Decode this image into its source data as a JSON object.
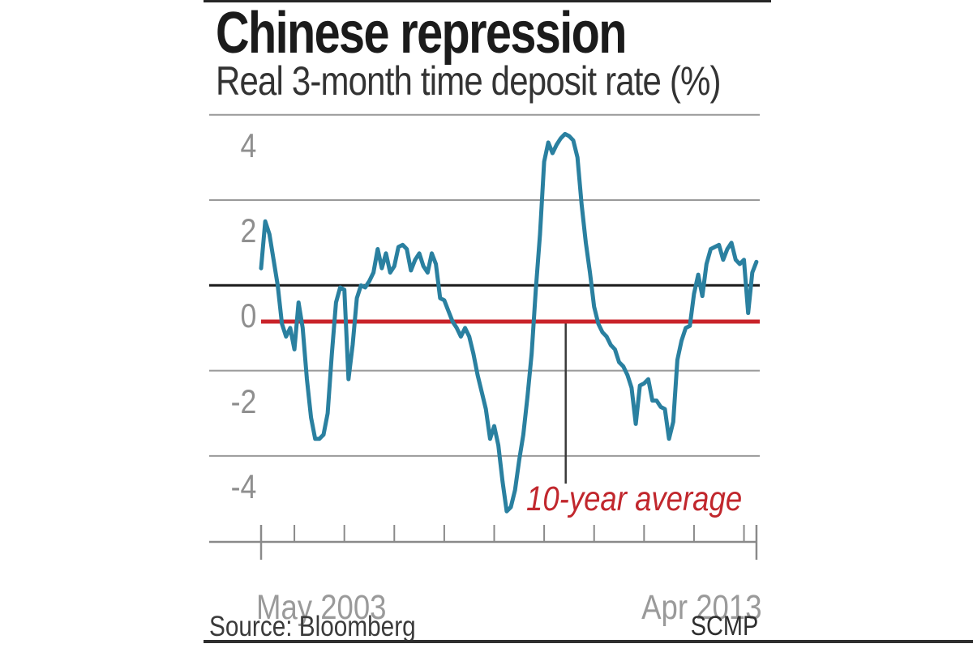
{
  "header": {
    "title": "Chinese repression",
    "subtitle": "Real 3-month time deposit rate (%)"
  },
  "footer": {
    "source": "Source: Bloomberg",
    "credit": "SCMP"
  },
  "annotation": {
    "label": "10-year average"
  },
  "y_axis": {
    "labels": [
      "4",
      "2",
      "0",
      "-2",
      "-4"
    ]
  },
  "x_axis": {
    "start_label": "May 2003",
    "end_label": "Apr 2013"
  },
  "colors": {
    "line": "#2a80a0",
    "average_line": "#c9232a",
    "annotation_text": "#c1272d",
    "zero_line": "#1a1a1a",
    "gridline": "#999999",
    "axis": "#8a8a8a",
    "connector": "#3a3a3a"
  },
  "chart_data": {
    "type": "line",
    "title": "Chinese repression",
    "subtitle": "Real 3-month time deposit rate (%)",
    "unit": "%",
    "x_start": "2003-05",
    "x_end": "2013-04",
    "frequency": "monthly",
    "yticks": [
      4,
      2,
      0,
      -2,
      -4
    ],
    "ylim": [
      -6,
      4
    ],
    "grid": true,
    "legend": false,
    "zero_line_emphasized": true,
    "ten_year_average": -0.85,
    "year_tick_months": [
      8,
      20,
      32,
      44,
      56,
      68,
      80,
      92,
      104,
      116
    ],
    "values_monthly": [
      0.4,
      1.5,
      1.2,
      0.6,
      0.0,
      -0.9,
      -1.2,
      -1.0,
      -1.5,
      -0.4,
      -1.0,
      -2.2,
      -3.1,
      -3.6,
      -3.6,
      -3.5,
      -3.0,
      -1.6,
      -0.4,
      -0.05,
      -0.1,
      -2.2,
      -1.4,
      -0.3,
      0.0,
      -0.05,
      0.1,
      0.3,
      0.85,
      0.4,
      0.75,
      0.3,
      0.45,
      0.9,
      0.95,
      0.85,
      0.35,
      0.6,
      0.75,
      0.45,
      0.3,
      0.75,
      0.5,
      -0.3,
      -0.35,
      -0.6,
      -0.85,
      -1.0,
      -1.2,
      -1.0,
      -1.2,
      -1.6,
      -2.1,
      -2.5,
      -2.9,
      -3.6,
      -3.3,
      -3.75,
      -4.6,
      -5.3,
      -5.2,
      -4.8,
      -4.1,
      -3.5,
      -2.6,
      -1.6,
      -0.1,
      1.2,
      2.9,
      3.35,
      3.1,
      3.3,
      3.45,
      3.55,
      3.5,
      3.4,
      3.0,
      1.9,
      1.0,
      0.3,
      -0.5,
      -0.9,
      -1.1,
      -1.2,
      -1.4,
      -1.5,
      -1.8,
      -1.9,
      -2.1,
      -2.4,
      -3.25,
      -2.35,
      -2.3,
      -2.2,
      -2.7,
      -2.7,
      -2.85,
      -2.9,
      -3.6,
      -3.2,
      -1.75,
      -1.3,
      -1.0,
      -0.95,
      -0.2,
      0.25,
      -0.25,
      0.5,
      0.85,
      0.9,
      0.95,
      0.6,
      0.85,
      1.0,
      0.6,
      0.5,
      0.6,
      -0.65,
      0.3,
      0.55
    ]
  }
}
